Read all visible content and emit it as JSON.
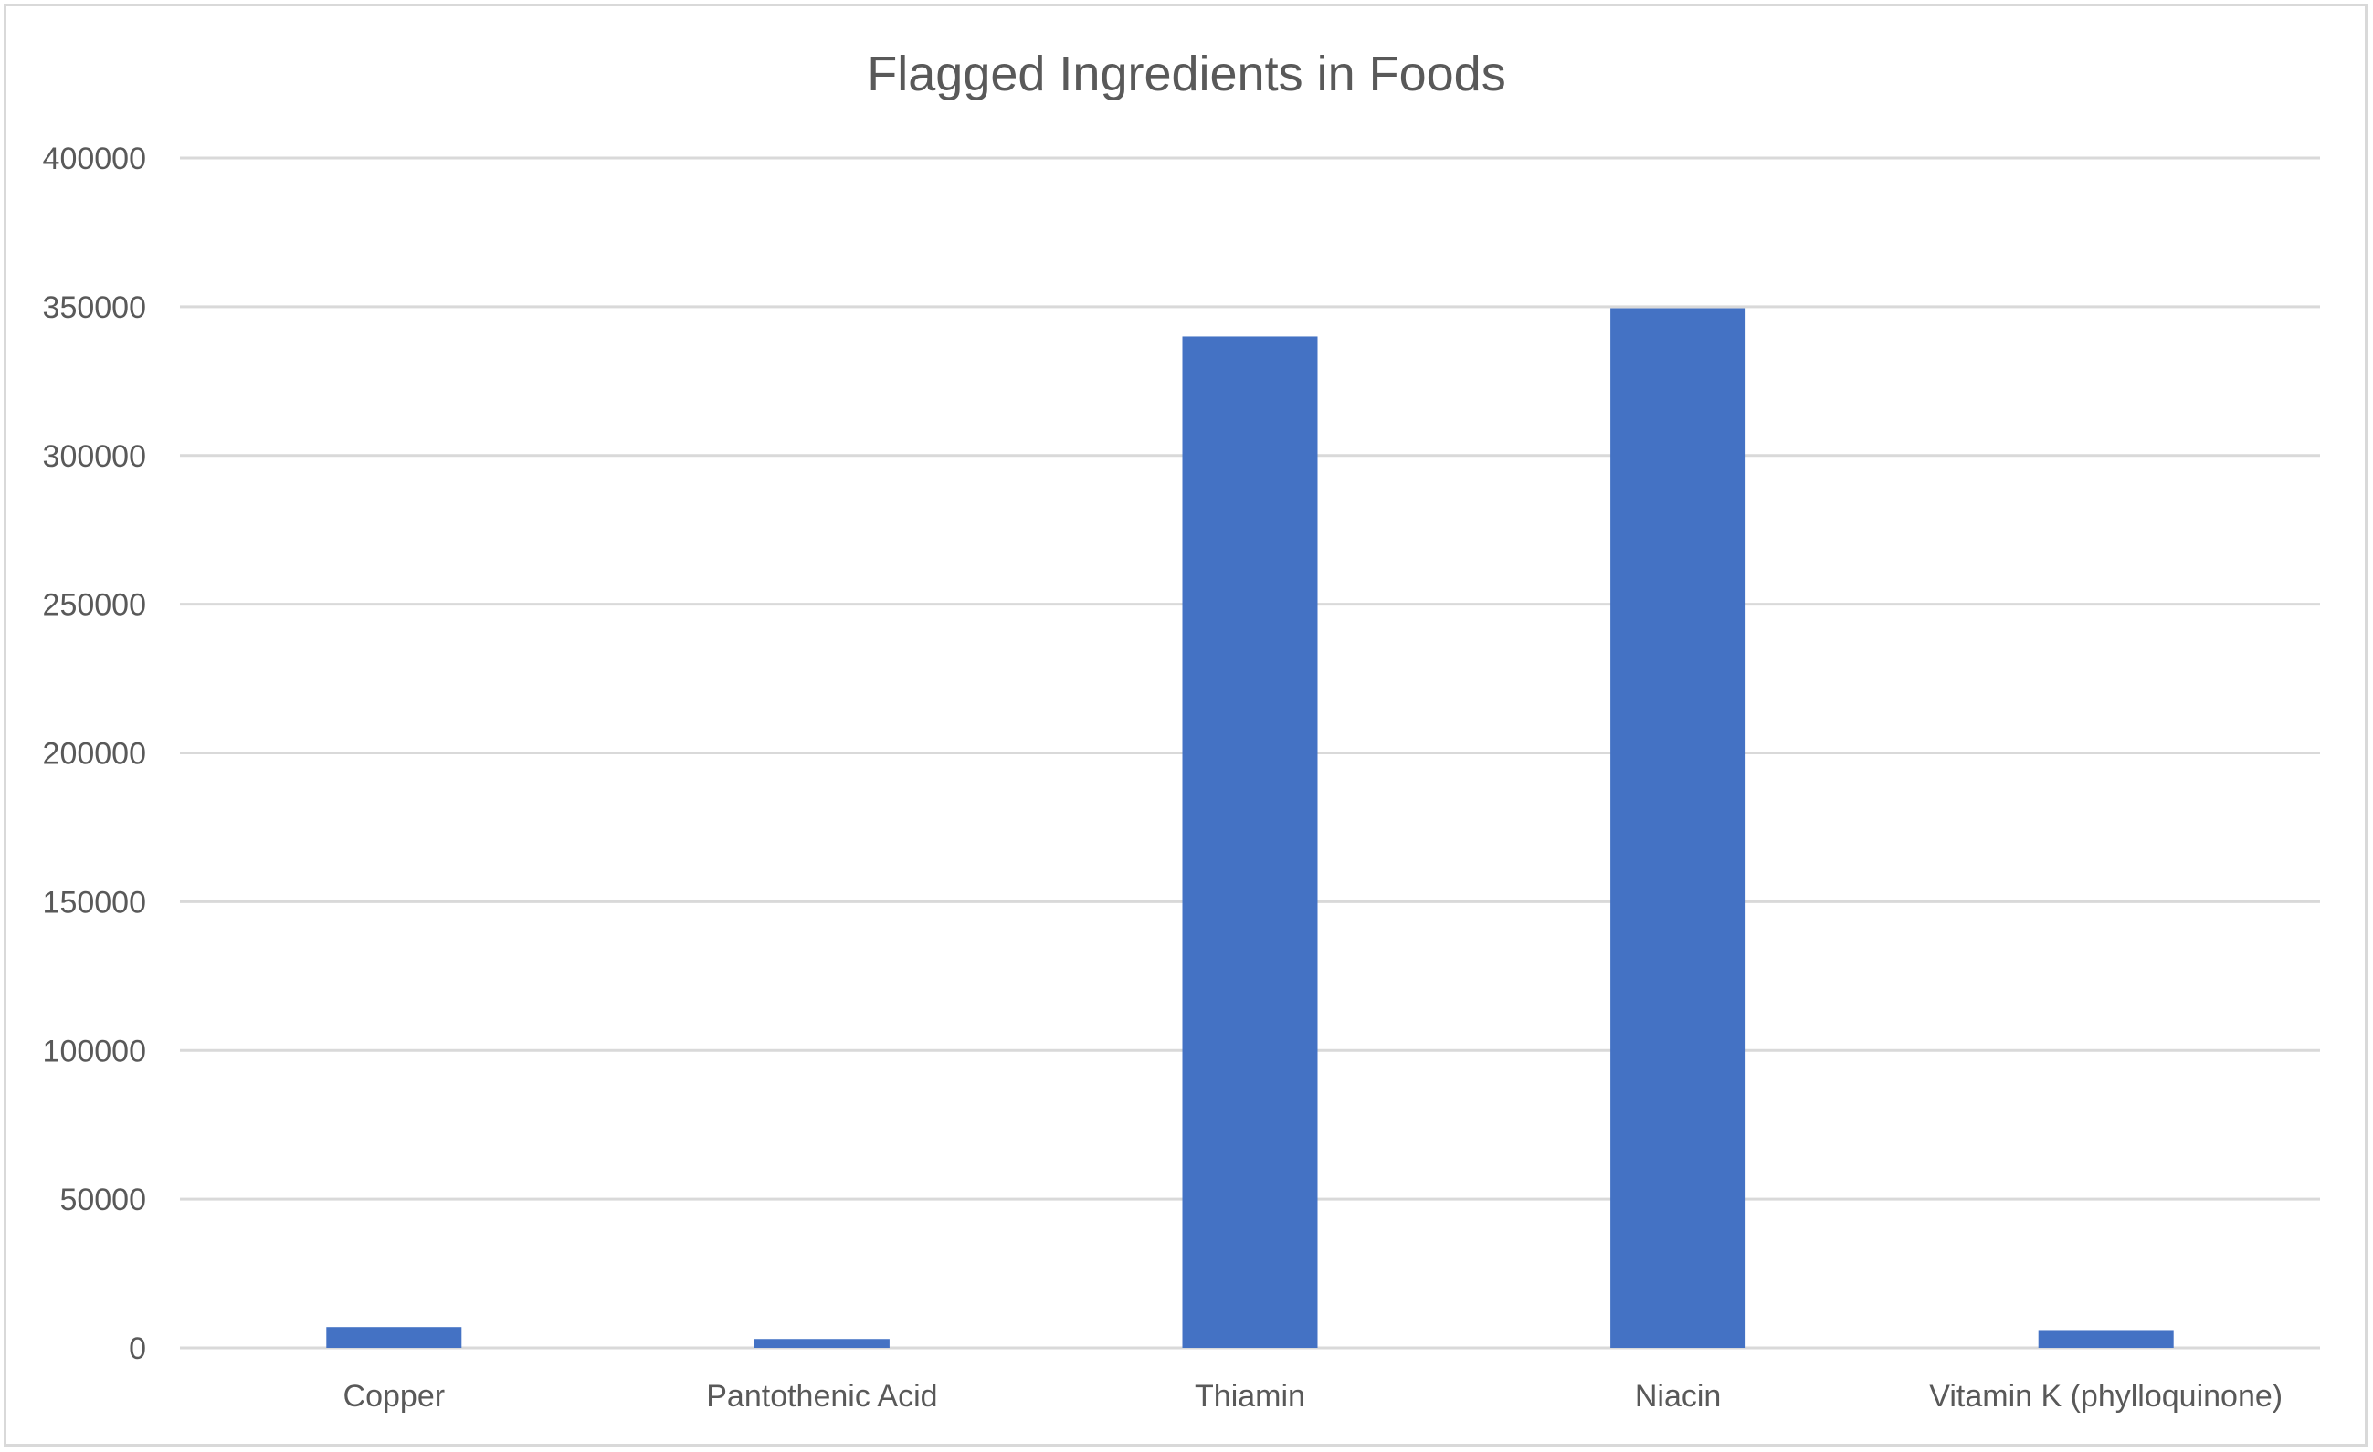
{
  "chart_data": {
    "type": "bar",
    "title": "Flagged Ingredients in Foods",
    "xlabel": "",
    "ylabel": "",
    "categories": [
      "Copper",
      "Pantothenic Acid",
      "Thiamin",
      "Niacin",
      "Vitamin K (phylloquinone)"
    ],
    "values": [
      7000,
      3000,
      340000,
      349500,
      6000
    ],
    "ylim": [
      0,
      400000
    ],
    "yticks": [
      0,
      50000,
      100000,
      150000,
      200000,
      250000,
      300000,
      350000,
      400000
    ],
    "grid": true,
    "legend": "none",
    "colors": {
      "bar": "#4472C4",
      "grid": "#d9d9d9",
      "text": "#595959"
    }
  }
}
